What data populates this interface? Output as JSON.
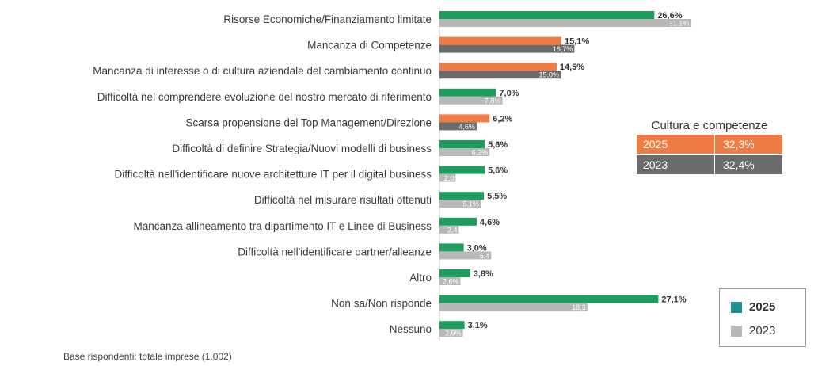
{
  "chart_data": {
    "type": "bar",
    "orientation": "horizontal",
    "categories": [
      "Risorse Economiche/Finanziamento limitate",
      "Mancanza di Competenze",
      "Mancanza di interesse o di cultura aziendale del cambiamento continuo",
      "Difficoltà nel comprendere evoluzione del nostro mercato di riferimento",
      "Scarsa propensione del Top Management/Direzione",
      "Difficoltà di definire Strategia/Nuovi modelli di business",
      "Difficoltà nell'identificare nuove architetture IT per il digital business",
      "Difficoltà nel misurare risultati ottenuti",
      "Mancanza allineamento tra dipartimento IT e Linee di Business",
      "Difficoltà nell'identificare partner/alleanze",
      "Altro",
      "Non sa/Non risponde",
      "Nessuno"
    ],
    "series": [
      {
        "name": "2025",
        "values": [
          26.6,
          15.1,
          14.5,
          7.0,
          6.2,
          5.6,
          5.6,
          5.5,
          4.6,
          3.0,
          3.8,
          27.1,
          3.1
        ],
        "labels": [
          "26,6%",
          "15,1%",
          "14,5%",
          "7,0%",
          "6,2%",
          "5,6%",
          "5,6%",
          "5,5%",
          "4,6%",
          "3,0%",
          "3,8%",
          "27,1%",
          "3,1%"
        ],
        "colors": [
          "#1f9e5b",
          "#f07c45",
          "#f07c45",
          "#1f9e5b",
          "#f07c45",
          "#1f9e5b",
          "#1f9e5b",
          "#1f9e5b",
          "#1f9e5b",
          "#1f9e5b",
          "#1f9e5b",
          "#1f9e5b",
          "#1f9e5b"
        ]
      },
      {
        "name": "2023",
        "values": [
          31.1,
          16.7,
          15.0,
          7.8,
          4.6,
          6.2,
          2.0,
          5.1,
          2.4,
          6.4,
          2.6,
          18.3,
          2.9
        ],
        "labels": [
          "31,1%",
          "16,7%",
          "15,0%",
          "7,8%",
          "4,6%",
          "6,2%",
          "2,0",
          "5,1%",
          "2,4",
          "6,4",
          "2,6%",
          "18,3",
          "2,9%"
        ],
        "colors": [
          "#b8b8b8",
          "#6b6b6b",
          "#6b6b6b",
          "#b8b8b8",
          "#6b6b6b",
          "#b8b8b8",
          "#b8b8b8",
          "#b8b8b8",
          "#b8b8b8",
          "#b8b8b8",
          "#b8b8b8",
          "#b8b8b8",
          "#b8b8b8"
        ]
      }
    ],
    "xlim": [
      0,
      34
    ],
    "grid": false,
    "legend_position": "bottom-right"
  },
  "summary": {
    "title": "Cultura e competenze",
    "rows": [
      {
        "year": "2025",
        "value": "32,3%",
        "color": "#f07c45"
      },
      {
        "year": "2023",
        "value": "32,4%",
        "color": "#6b6b6b"
      }
    ]
  },
  "legend": {
    "items": [
      {
        "label": "2025",
        "color": "#1f8f8f"
      },
      {
        "label": "2023",
        "color": "#b8b8b8"
      }
    ]
  },
  "footnote": "Base rispondenti: totale imprese (1.002)"
}
